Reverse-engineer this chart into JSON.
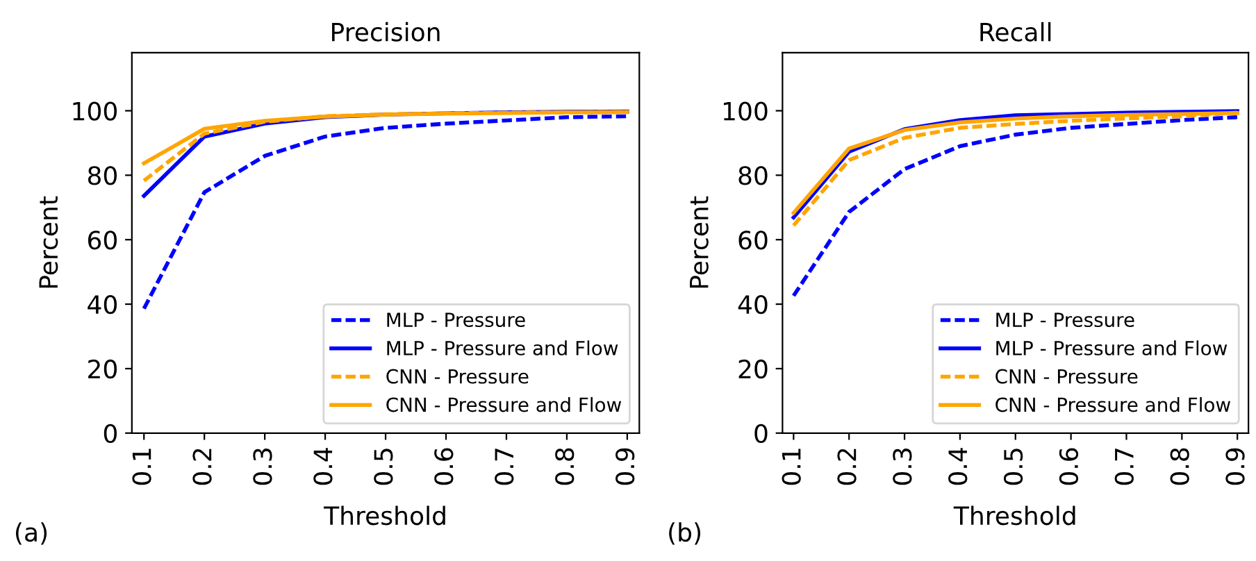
{
  "chart_data": [
    {
      "type": "line",
      "title": "Precision",
      "xlabel": "Threshold",
      "ylabel": "Percent",
      "annotations": [
        "(a)"
      ],
      "categories": [
        "0.1",
        "0.2",
        "0.3",
        "0.4",
        "0.5",
        "0.6",
        "0.7",
        "0.8",
        "0.9"
      ],
      "ylim": [
        0,
        118
      ],
      "yticks": [
        0,
        20,
        40,
        60,
        80,
        100
      ],
      "legend": "lower right",
      "grid": false,
      "series": [
        {
          "name": "MLP - Pressure",
          "color": "#0000ff",
          "line_style": "dashed",
          "values": [
            38.6,
            74.7,
            86,
            92,
            94.7,
            96,
            97,
            98,
            98.3
          ]
        },
        {
          "name": "MLP - Pressure and Flow",
          "color": "#0000ff",
          "line_style": "solid",
          "values": [
            73.6,
            92,
            96,
            98,
            98.8,
            99.2,
            99.5,
            99.7,
            99.8
          ]
        },
        {
          "name": "CNN - Pressure",
          "color": "#ffa500",
          "line_style": "dashed",
          "values": [
            78.3,
            92.9,
            96.6,
            98.3,
            98.9,
            99.2,
            99.4,
            99.5,
            99.6
          ]
        },
        {
          "name": "CNN - Pressure and Flow",
          "color": "#ffa500",
          "line_style": "solid",
          "values": [
            83.7,
            94.4,
            96.9,
            98.2,
            98.8,
            99.1,
            99.3,
            99.5,
            99.6
          ]
        }
      ]
    },
    {
      "type": "line",
      "title": "Recall",
      "xlabel": "Threshold",
      "ylabel": "Percent",
      "annotations": [
        "(b)"
      ],
      "categories": [
        "0.1",
        "0.2",
        "0.3",
        "0.4",
        "0.5",
        "0.6",
        "0.7",
        "0.8",
        "0.9"
      ],
      "ylim": [
        0,
        118
      ],
      "yticks": [
        0,
        20,
        40,
        60,
        80,
        100
      ],
      "legend": "lower right",
      "grid": false,
      "series": [
        {
          "name": "MLP - Pressure",
          "color": "#0000ff",
          "line_style": "dashed",
          "values": [
            42.6,
            68.6,
            81.9,
            89,
            92.6,
            94.7,
            95.9,
            97.1,
            98
          ]
        },
        {
          "name": "MLP - Pressure and Flow",
          "color": "#0000ff",
          "line_style": "solid",
          "values": [
            66.9,
            87.3,
            94.3,
            97.1,
            98.6,
            99,
            99.4,
            99.7,
            99.9
          ]
        },
        {
          "name": "CNN - Pressure",
          "color": "#ffa500",
          "line_style": "dashed",
          "values": [
            64.4,
            84.7,
            91.6,
            94.7,
            95.9,
            96.9,
            97.6,
            98.3,
            99.4
          ]
        },
        {
          "name": "CNN - Pressure and Flow",
          "color": "#ffa500",
          "line_style": "solid",
          "values": [
            68.3,
            88.3,
            94,
            96.4,
            97.6,
            98.3,
            98.7,
            99,
            99.3
          ]
        }
      ]
    }
  ]
}
